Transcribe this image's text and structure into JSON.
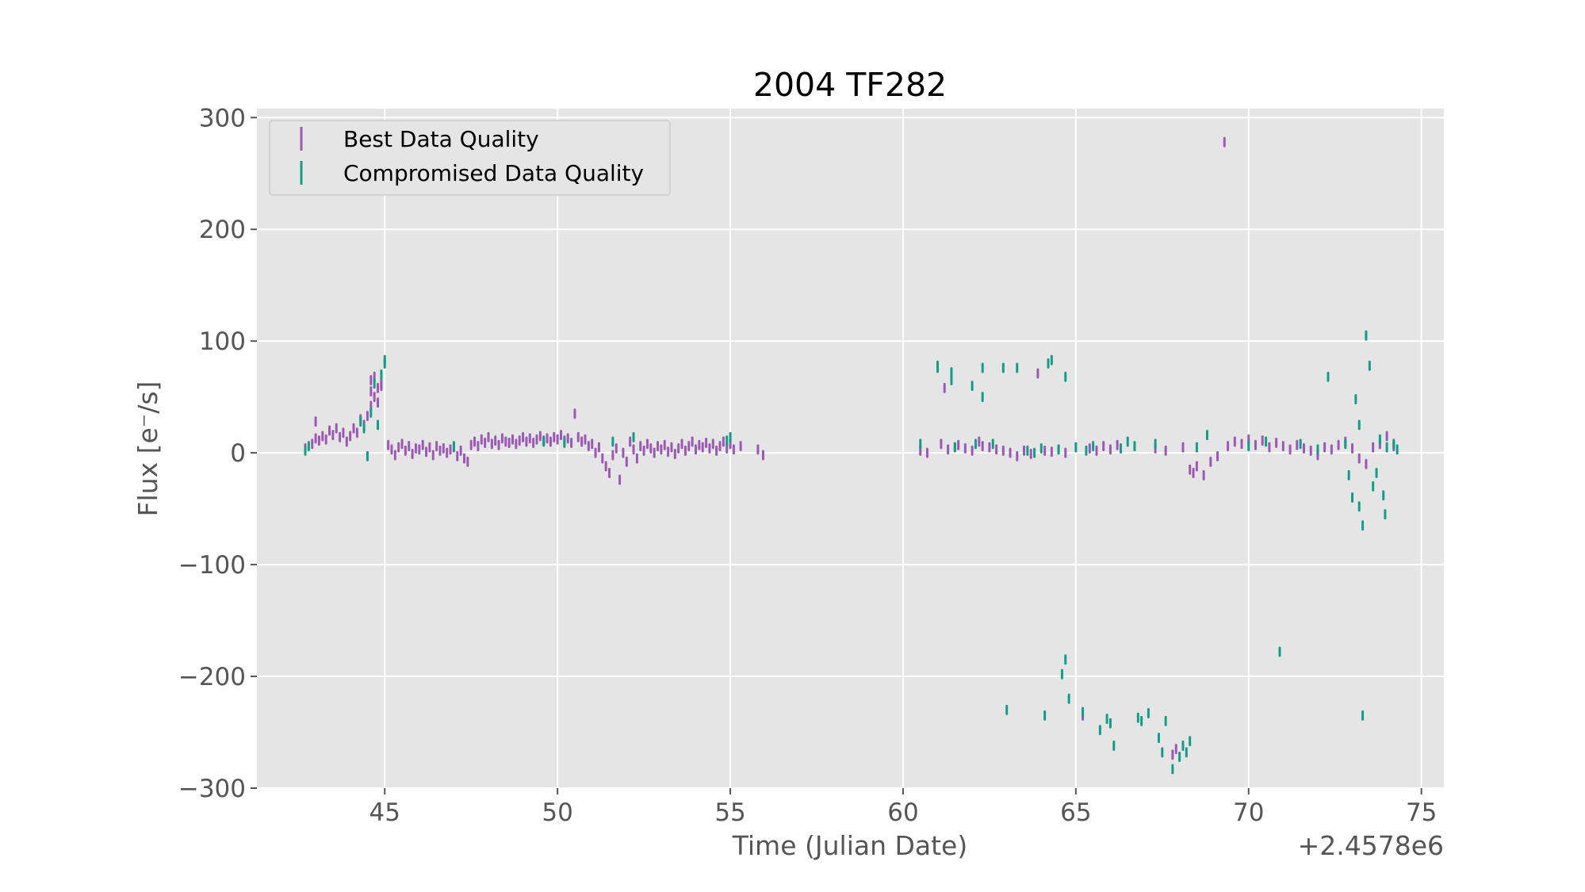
{
  "chart_data": {
    "type": "scatter",
    "title": "2004 TF282",
    "xlabel": "Time (Julian Date)",
    "ylabel": "Flux [e⁻/s]",
    "x_offset_label": "+2.4578e6",
    "xlim": [
      41.3,
      75.65
    ],
    "ylim": [
      -300,
      308
    ],
    "x_ticks": [
      45,
      50,
      55,
      60,
      65,
      70,
      75
    ],
    "y_ticks": [
      -300,
      -200,
      -100,
      0,
      100,
      200,
      300
    ],
    "x_tick_labels": [
      "45",
      "50",
      "55",
      "60",
      "65",
      "70",
      "75"
    ],
    "y_tick_labels": [
      "−300",
      "−200",
      "−100",
      "0",
      "100",
      "200",
      "300"
    ],
    "grid": true,
    "legend_position": "top-left",
    "colors": {
      "best": "#9b59b6",
      "compromised": "#119e85",
      "background": "#e5e5e5",
      "grid": "#ffffff"
    },
    "series": [
      {
        "name": "Best Data Quality",
        "points": [
          [
            42.7,
            4
          ],
          [
            42.9,
            8
          ],
          [
            43.0,
            13
          ],
          [
            43.0,
            28
          ],
          [
            43.1,
            11
          ],
          [
            43.2,
            15
          ],
          [
            43.3,
            12
          ],
          [
            43.4,
            20
          ],
          [
            43.5,
            16
          ],
          [
            43.6,
            22
          ],
          [
            43.7,
            14
          ],
          [
            43.8,
            18
          ],
          [
            43.9,
            10
          ],
          [
            44.0,
            15
          ],
          [
            44.1,
            22
          ],
          [
            44.2,
            18
          ],
          [
            44.3,
            30
          ],
          [
            44.4,
            25
          ],
          [
            44.5,
            33
          ],
          [
            44.6,
            42
          ],
          [
            44.6,
            55
          ],
          [
            44.6,
            65
          ],
          [
            44.7,
            50
          ],
          [
            44.7,
            68
          ],
          [
            44.8,
            58
          ],
          [
            44.8,
            45
          ],
          [
            44.9,
            62
          ],
          [
            44.9,
            60
          ],
          [
            45.1,
            7
          ],
          [
            45.2,
            3
          ],
          [
            45.3,
            -2
          ],
          [
            45.4,
            5
          ],
          [
            45.5,
            8
          ],
          [
            45.6,
            2
          ],
          [
            45.7,
            6
          ],
          [
            45.8,
            -1
          ],
          [
            45.9,
            4
          ],
          [
            46.0,
            3
          ],
          [
            46.1,
            7
          ],
          [
            46.2,
            1
          ],
          [
            46.3,
            5
          ],
          [
            46.4,
            -2
          ],
          [
            46.5,
            6
          ],
          [
            46.6,
            2
          ],
          [
            46.7,
            4
          ],
          [
            46.8,
            0
          ],
          [
            46.9,
            3
          ],
          [
            47.0,
            5
          ],
          [
            47.1,
            -3
          ],
          [
            47.2,
            2
          ],
          [
            47.3,
            -5
          ],
          [
            47.4,
            -8
          ],
          [
            47.5,
            7
          ],
          [
            47.6,
            10
          ],
          [
            47.7,
            6
          ],
          [
            47.8,
            12
          ],
          [
            47.9,
            9
          ],
          [
            48.0,
            14
          ],
          [
            48.1,
            8
          ],
          [
            48.2,
            11
          ],
          [
            48.3,
            7
          ],
          [
            48.4,
            13
          ],
          [
            48.5,
            10
          ],
          [
            48.6,
            9
          ],
          [
            48.7,
            12
          ],
          [
            48.8,
            8
          ],
          [
            48.9,
            11
          ],
          [
            49.0,
            14
          ],
          [
            49.1,
            10
          ],
          [
            49.2,
            13
          ],
          [
            49.3,
            9
          ],
          [
            49.4,
            12
          ],
          [
            49.5,
            15
          ],
          [
            49.6,
            11
          ],
          [
            49.7,
            13
          ],
          [
            49.8,
            10
          ],
          [
            49.9,
            14
          ],
          [
            50.0,
            12
          ],
          [
            50.1,
            16
          ],
          [
            50.2,
            11
          ],
          [
            50.3,
            13
          ],
          [
            50.4,
            9
          ],
          [
            50.5,
            35
          ],
          [
            50.6,
            14
          ],
          [
            50.7,
            10
          ],
          [
            50.8,
            12
          ],
          [
            50.9,
            6
          ],
          [
            51.0,
            8
          ],
          [
            51.1,
            0
          ],
          [
            51.2,
            5
          ],
          [
            51.3,
            -5
          ],
          [
            51.4,
            -12
          ],
          [
            51.5,
            -18
          ],
          [
            51.6,
            -2
          ],
          [
            51.7,
            4
          ],
          [
            51.8,
            -24
          ],
          [
            51.9,
            0
          ],
          [
            52.0,
            -8
          ],
          [
            52.1,
            10
          ],
          [
            52.2,
            3
          ],
          [
            52.3,
            -5
          ],
          [
            52.4,
            6
          ],
          [
            52.5,
            2
          ],
          [
            52.6,
            8
          ],
          [
            52.7,
            4
          ],
          [
            52.8,
            0
          ],
          [
            52.9,
            6
          ],
          [
            53.0,
            3
          ],
          [
            53.1,
            7
          ],
          [
            53.2,
            1
          ],
          [
            53.3,
            5
          ],
          [
            53.4,
            -1
          ],
          [
            53.5,
            4
          ],
          [
            53.6,
            8
          ],
          [
            53.7,
            2
          ],
          [
            53.8,
            6
          ],
          [
            53.9,
            10
          ],
          [
            54.0,
            3
          ],
          [
            54.1,
            7
          ],
          [
            54.2,
            5
          ],
          [
            54.3,
            9
          ],
          [
            54.4,
            4
          ],
          [
            54.5,
            8
          ],
          [
            54.6,
            2
          ],
          [
            54.7,
            6
          ],
          [
            54.8,
            10
          ],
          [
            54.9,
            4
          ],
          [
            55.0,
            8
          ],
          [
            55.1,
            3
          ],
          [
            55.3,
            6
          ],
          [
            55.8,
            3
          ],
          [
            55.95,
            -2
          ],
          [
            60.5,
            2
          ],
          [
            60.7,
            0
          ],
          [
            61.1,
            8
          ],
          [
            61.2,
            58
          ],
          [
            61.3,
            3
          ],
          [
            61.5,
            5
          ],
          [
            61.6,
            7
          ],
          [
            61.8,
            4
          ],
          [
            62.0,
            2
          ],
          [
            62.2,
            10
          ],
          [
            62.3,
            6
          ],
          [
            62.5,
            5
          ],
          [
            62.7,
            3
          ],
          [
            62.9,
            2
          ],
          [
            63.1,
            0
          ],
          [
            63.3,
            -3
          ],
          [
            63.5,
            2
          ],
          [
            63.7,
            -1
          ],
          [
            63.9,
            71
          ],
          [
            64.1,
            2
          ],
          [
            64.3,
            1
          ],
          [
            64.5,
            3
          ],
          [
            64.7,
            0
          ],
          [
            65.2,
            -235
          ],
          [
            65.4,
            4
          ],
          [
            65.6,
            2
          ],
          [
            65.8,
            6
          ],
          [
            66.0,
            3
          ],
          [
            66.2,
            7
          ],
          [
            67.3,
            4
          ],
          [
            67.6,
            2
          ],
          [
            67.8,
            -270
          ],
          [
            67.9,
            -265
          ],
          [
            68.1,
            5
          ],
          [
            68.3,
            -15
          ],
          [
            68.4,
            -18
          ],
          [
            68.5,
            -12
          ],
          [
            68.7,
            -20
          ],
          [
            68.9,
            -8
          ],
          [
            69.1,
            -3
          ],
          [
            69.3,
            278
          ],
          [
            69.4,
            6
          ],
          [
            69.6,
            10
          ],
          [
            69.8,
            8
          ],
          [
            70.0,
            12
          ],
          [
            70.2,
            7
          ],
          [
            70.4,
            11
          ],
          [
            70.6,
            5
          ],
          [
            70.8,
            9
          ],
          [
            71.0,
            6
          ],
          [
            71.2,
            3
          ],
          [
            71.4,
            7
          ],
          [
            71.6,
            4
          ],
          [
            71.8,
            2
          ],
          [
            72.0,
            -2
          ],
          [
            72.2,
            5
          ],
          [
            72.4,
            3
          ],
          [
            72.6,
            7
          ],
          [
            72.8,
            10
          ],
          [
            73.0,
            4
          ],
          [
            73.2,
            -5
          ],
          [
            73.4,
            -10
          ],
          [
            73.6,
            5
          ],
          [
            73.8,
            8
          ],
          [
            74.0,
            15
          ],
          [
            74.2,
            6
          ]
        ]
      },
      {
        "name": "Compromised Data Quality",
        "points": [
          [
            42.7,
            2
          ],
          [
            42.8,
            6
          ],
          [
            44.3,
            28
          ],
          [
            44.4,
            22
          ],
          [
            44.5,
            -3
          ],
          [
            44.6,
            36
          ],
          [
            44.7,
            62
          ],
          [
            44.8,
            25
          ],
          [
            44.9,
            70
          ],
          [
            45.0,
            80
          ],
          [
            45.0,
            83
          ],
          [
            47.0,
            6
          ],
          [
            49.6,
            10
          ],
          [
            50.2,
            9
          ],
          [
            51.6,
            10
          ],
          [
            52.2,
            14
          ],
          [
            54.9,
            11
          ],
          [
            55.0,
            14
          ],
          [
            60.5,
            8
          ],
          [
            61.0,
            76
          ],
          [
            61.0,
            78
          ],
          [
            61.4,
            72
          ],
          [
            61.4,
            65
          ],
          [
            61.5,
            5
          ],
          [
            62.0,
            60
          ],
          [
            62.1,
            8
          ],
          [
            62.3,
            76
          ],
          [
            62.3,
            50
          ],
          [
            62.6,
            8
          ],
          [
            62.9,
            76
          ],
          [
            63.0,
            -230
          ],
          [
            63.3,
            76
          ],
          [
            63.6,
            2
          ],
          [
            63.8,
            0
          ],
          [
            64.0,
            4
          ],
          [
            64.1,
            -235
          ],
          [
            64.2,
            80
          ],
          [
            64.3,
            83
          ],
          [
            64.5,
            3
          ],
          [
            64.6,
            -198
          ],
          [
            64.7,
            68
          ],
          [
            64.7,
            -185
          ],
          [
            64.8,
            -220
          ],
          [
            65.0,
            5
          ],
          [
            65.2,
            -232
          ],
          [
            65.3,
            2
          ],
          [
            65.5,
            6
          ],
          [
            65.7,
            -248
          ],
          [
            65.9,
            -238
          ],
          [
            66.0,
            -242
          ],
          [
            66.1,
            -262
          ],
          [
            66.3,
            4
          ],
          [
            66.5,
            10
          ],
          [
            66.7,
            6
          ],
          [
            66.8,
            -237
          ],
          [
            66.9,
            -240
          ],
          [
            67.1,
            -233
          ],
          [
            67.3,
            8
          ],
          [
            67.4,
            -255
          ],
          [
            67.5,
            -268
          ],
          [
            67.6,
            -240
          ],
          [
            67.8,
            -283
          ],
          [
            68.0,
            -272
          ],
          [
            68.1,
            -262
          ],
          [
            68.2,
            -268
          ],
          [
            68.3,
            -258
          ],
          [
            68.5,
            5
          ],
          [
            68.8,
            16
          ],
          [
            70.0,
            6
          ],
          [
            70.5,
            10
          ],
          [
            70.9,
            -178
          ],
          [
            71.5,
            8
          ],
          [
            72.0,
            3
          ],
          [
            72.3,
            68
          ],
          [
            72.8,
            8
          ],
          [
            72.9,
            -20
          ],
          [
            73.0,
            -40
          ],
          [
            73.1,
            48
          ],
          [
            73.2,
            25
          ],
          [
            73.2,
            -48
          ],
          [
            73.3,
            -65
          ],
          [
            73.3,
            -235
          ],
          [
            73.4,
            105
          ],
          [
            73.5,
            78
          ],
          [
            73.6,
            -30
          ],
          [
            73.7,
            -18
          ],
          [
            73.8,
            12
          ],
          [
            73.9,
            -38
          ],
          [
            73.95,
            -55
          ],
          [
            74.0,
            5
          ],
          [
            74.2,
            8
          ],
          [
            74.3,
            3
          ]
        ]
      }
    ]
  },
  "legend": {
    "items": [
      {
        "label": "Best Data Quality",
        "color": "#9b59b6"
      },
      {
        "label": "Compromised Data Quality",
        "color": "#119e85"
      }
    ]
  }
}
